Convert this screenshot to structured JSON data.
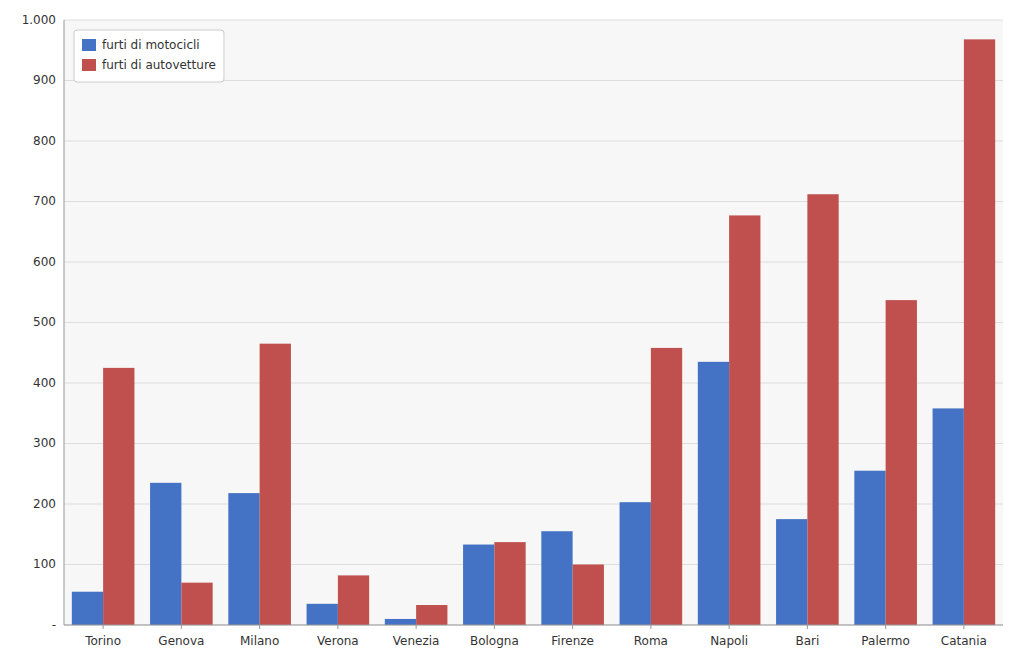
{
  "chart_data": {
    "type": "bar",
    "categories": [
      "Torino",
      "Genova",
      "Milano",
      "Verona",
      "Venezia",
      "Bologna",
      "Firenze",
      "Roma",
      "Napoli",
      "Bari",
      "Palermo",
      "Catania"
    ],
    "series": [
      {
        "name": "furti di motocicli",
        "color": "#4472C4",
        "values": [
          55,
          235,
          218,
          35,
          10,
          133,
          155,
          203,
          435,
          175,
          255,
          358
        ]
      },
      {
        "name": "furti di autovetture",
        "color": "#C0504D",
        "values": [
          425,
          70,
          465,
          82,
          33,
          137,
          100,
          458,
          677,
          712,
          537,
          968
        ]
      }
    ],
    "ylim": [
      0,
      1000
    ],
    "yticks": [
      {
        "value": 0,
        "label": "-"
      },
      100,
      200,
      300,
      400,
      500,
      600,
      700,
      800,
      900,
      {
        "value": 1000,
        "label": "1.000"
      }
    ],
    "grid": true,
    "legend": "upper left"
  }
}
